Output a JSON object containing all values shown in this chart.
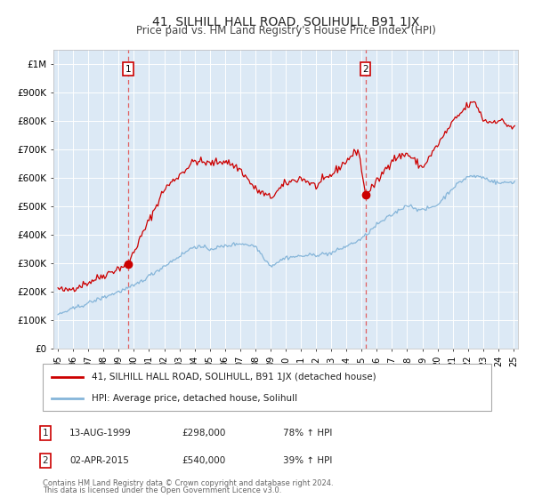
{
  "title": "41, SILHILL HALL ROAD, SOLIHULL, B91 1JX",
  "subtitle": "Price paid vs. HM Land Registry's House Price Index (HPI)",
  "title_fontsize": 10,
  "subtitle_fontsize": 8.5,
  "background_color": "#ffffff",
  "plot_bg_color": "#dce9f5",
  "grid_color": "#ffffff",
  "red_line_color": "#cc0000",
  "blue_line_color": "#85b5d9",
  "marker_color": "#cc0000",
  "dashed_line_color": "#e06060",
  "point1_x": 1999.617,
  "point1_y": 298000,
  "point1_label": "1",
  "point1_date": "13-AUG-1999",
  "point1_price": "£298,000",
  "point1_pct": "78% ↑ HPI",
  "point2_x": 2015.25,
  "point2_y": 540000,
  "point2_label": "2",
  "point2_date": "02-APR-2015",
  "point2_price": "£540,000",
  "point2_pct": "39% ↑ HPI",
  "ylim": [
    0,
    1050000
  ],
  "xlim": [
    1994.7,
    2025.3
  ],
  "yticks": [
    0,
    100000,
    200000,
    300000,
    400000,
    500000,
    600000,
    700000,
    800000,
    900000,
    1000000
  ],
  "ytick_labels": [
    "£0",
    "£100K",
    "£200K",
    "£300K",
    "£400K",
    "£500K",
    "£600K",
    "£700K",
    "£800K",
    "£900K",
    "£1M"
  ],
  "legend_line1": "41, SILHILL HALL ROAD, SOLIHULL, B91 1JX (detached house)",
  "legend_line2": "HPI: Average price, detached house, Solihull",
  "footer1": "Contains HM Land Registry data © Crown copyright and database right 2024.",
  "footer2": "This data is licensed under the Open Government Licence v3.0."
}
